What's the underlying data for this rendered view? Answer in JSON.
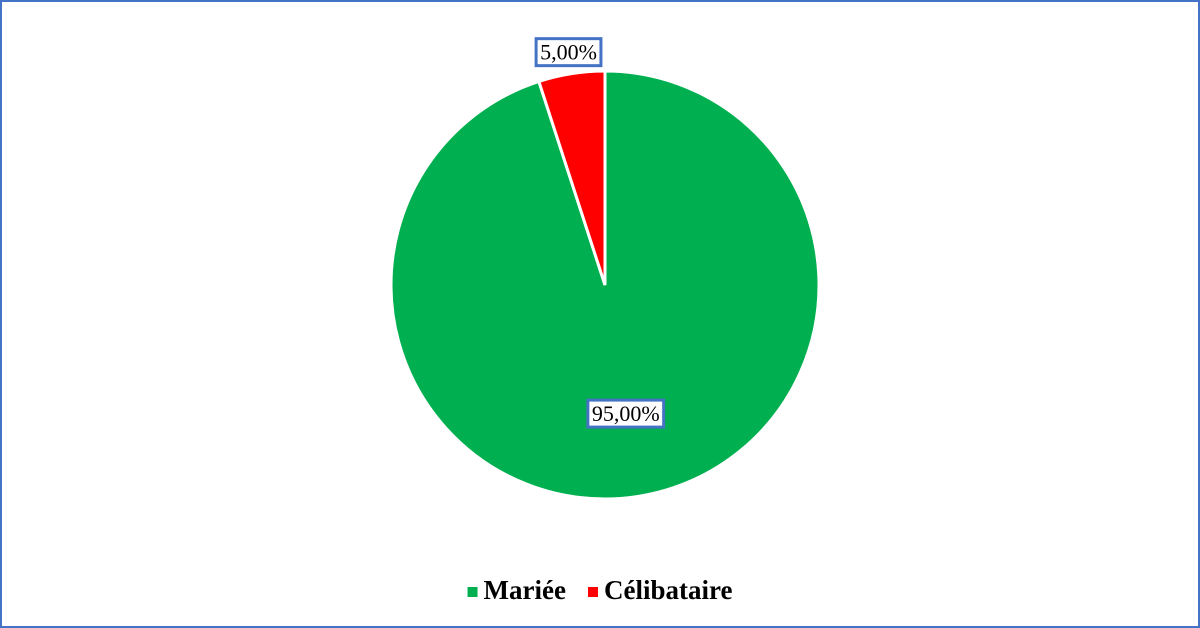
{
  "chart_data": {
    "type": "pie",
    "categories": [
      "Mariée",
      "Célibataire"
    ],
    "values": [
      95,
      5
    ],
    "value_labels": [
      "95,00%",
      "5,00%"
    ],
    "colors": [
      "#00b050",
      "#ff0000"
    ],
    "legend": "bottom"
  }
}
